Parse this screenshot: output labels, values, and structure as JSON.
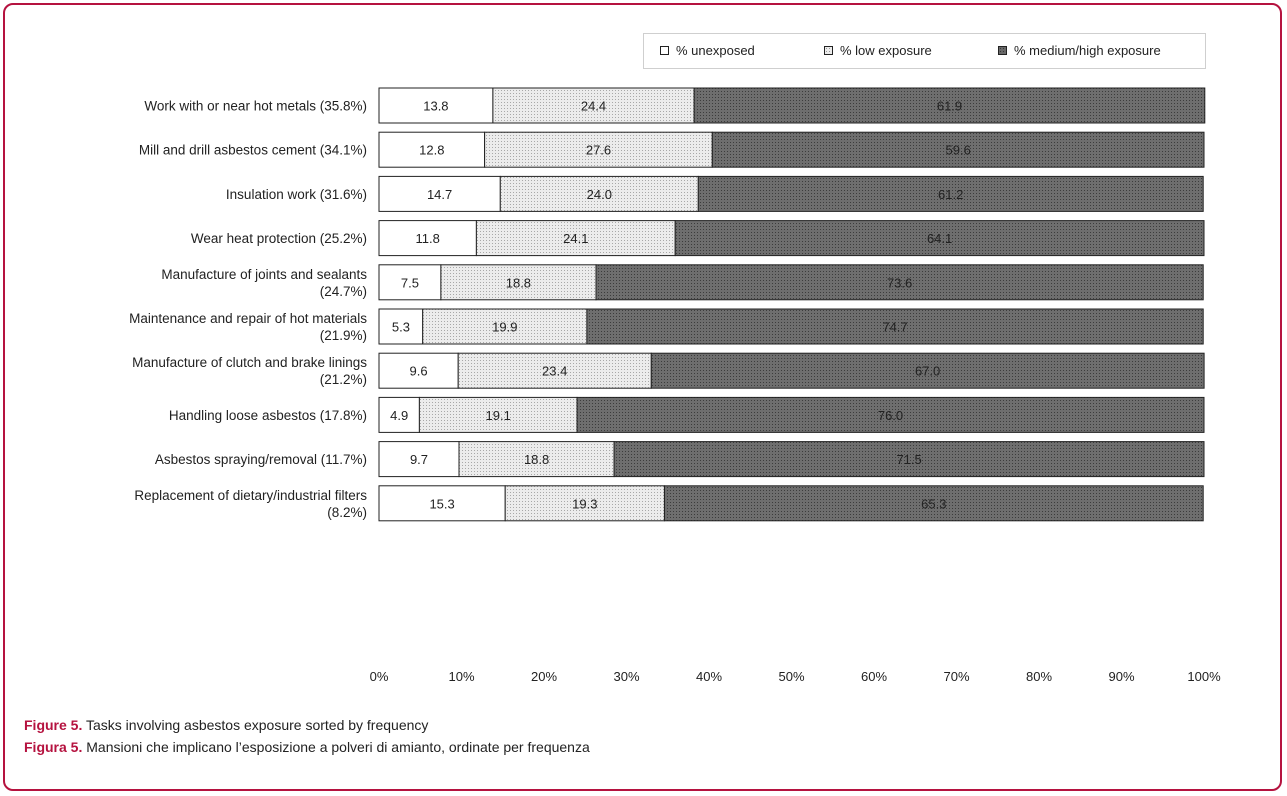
{
  "chart_data": {
    "type": "bar",
    "orientation": "horizontal",
    "stacked": true,
    "percent_stacked": true,
    "categories": [
      [
        "Work with or near hot metals (35.8%)"
      ],
      [
        "Mill and drill asbestos cement (34.1%)"
      ],
      [
        "Insulation work (31.6%)"
      ],
      [
        "Wear heat protection (25.2%)"
      ],
      [
        "Manufacture of joints and sealants",
        "(24.7%)"
      ],
      [
        "Maintenance and repair of hot materials",
        "(21.9%)"
      ],
      [
        "Manufacture of clutch and brake linings",
        "(21.2%)"
      ],
      [
        "Handling loose asbestos (17.8%)"
      ],
      [
        "Asbestos spraying/removal (11.7%)"
      ],
      [
        "Replacement of dietary/industrial filters",
        "(8.2%)"
      ]
    ],
    "series": [
      {
        "name": "% unexposed",
        "values": [
          13.8,
          12.8,
          14.7,
          11.8,
          7.5,
          5.3,
          9.6,
          4.9,
          9.7,
          15.3
        ],
        "labels": [
          "13.8",
          "12.8",
          "14.7",
          "11.8",
          "7.5",
          "5.3",
          "9.6",
          "4.9",
          "9.7",
          "15.3"
        ]
      },
      {
        "name": "% low exposure",
        "values": [
          24.4,
          27.6,
          24.0,
          24.1,
          18.8,
          19.9,
          23.4,
          19.1,
          18.8,
          19.3
        ],
        "labels": [
          "24.4",
          "27.6",
          "24.0",
          "24.1",
          "18.8",
          "19.9",
          "23.4",
          "19.1",
          "18.8",
          "19.3"
        ]
      },
      {
        "name": "% medium/high exposure",
        "values": [
          61.9,
          59.6,
          61.2,
          64.1,
          73.6,
          74.7,
          67.0,
          76.0,
          71.5,
          65.3
        ],
        "labels": [
          "61.9",
          "59.6",
          "61.2",
          "64.1",
          "73.6",
          "74.7",
          "67.0",
          "76.0",
          "71.5",
          "65.3"
        ]
      }
    ],
    "xlim": [
      0,
      100
    ],
    "xticks": [
      "0%",
      "10%",
      "20%",
      "30%",
      "40%",
      "50%",
      "60%",
      "70%",
      "80%",
      "90%",
      "100%"
    ],
    "legend_position": "top-right",
    "grid": false,
    "colors": {
      "unexposed": "#ffffff",
      "low": "#e6e6e6",
      "high": "#666666",
      "frame": "#b5123f"
    }
  },
  "captions": [
    {
      "lead": "Figure 5.",
      "text": " Tasks involving asbestos exposure sorted by frequency"
    },
    {
      "lead": "Figura 5.",
      "text": " Mansioni che implicano l’esposizione a polveri di amianto, ordinate per frequenza"
    }
  ]
}
